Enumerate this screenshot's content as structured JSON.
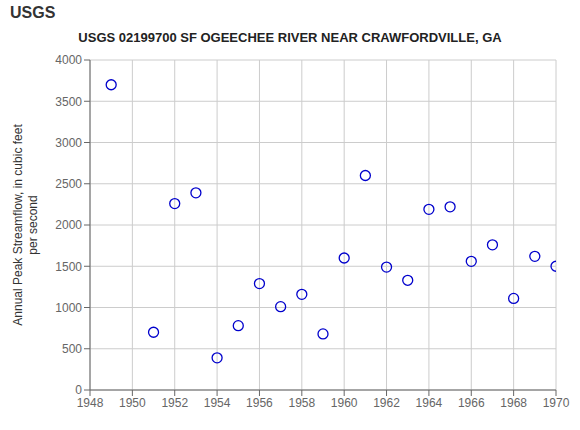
{
  "chart_data": {
    "type": "scatter",
    "title": "USGS 02199700 SF OGEECHEE RIVER NEAR CRAWFORDVILLE, GA",
    "ylabel": "Annual Peak Streamflow, in cubic feet\nper second",
    "annotations": [
      {
        "text": "USGS"
      }
    ],
    "x": [
      1949,
      1951,
      1952,
      1953,
      1954,
      1955,
      1956,
      1957,
      1958,
      1959,
      1960,
      1961,
      1962,
      1963,
      1964,
      1965,
      1966,
      1967,
      1968,
      1969,
      1970
    ],
    "values": [
      3700,
      700,
      2260,
      2390,
      390,
      780,
      1290,
      1010,
      1160,
      680,
      1600,
      2600,
      1490,
      1330,
      2190,
      2220,
      1560,
      1760,
      1110,
      1620,
      1500
    ],
    "color": "#0000cc",
    "marker": "circle",
    "xlim": [
      1948,
      1970
    ],
    "ylim": [
      0,
      4000
    ],
    "xticks": [
      1948,
      1950,
      1952,
      1954,
      1956,
      1958,
      1960,
      1962,
      1964,
      1966,
      1968,
      1970
    ],
    "yticks": [
      0,
      500,
      1000,
      1500,
      2000,
      2500,
      3000,
      3500,
      4000
    ],
    "grid": true
  }
}
